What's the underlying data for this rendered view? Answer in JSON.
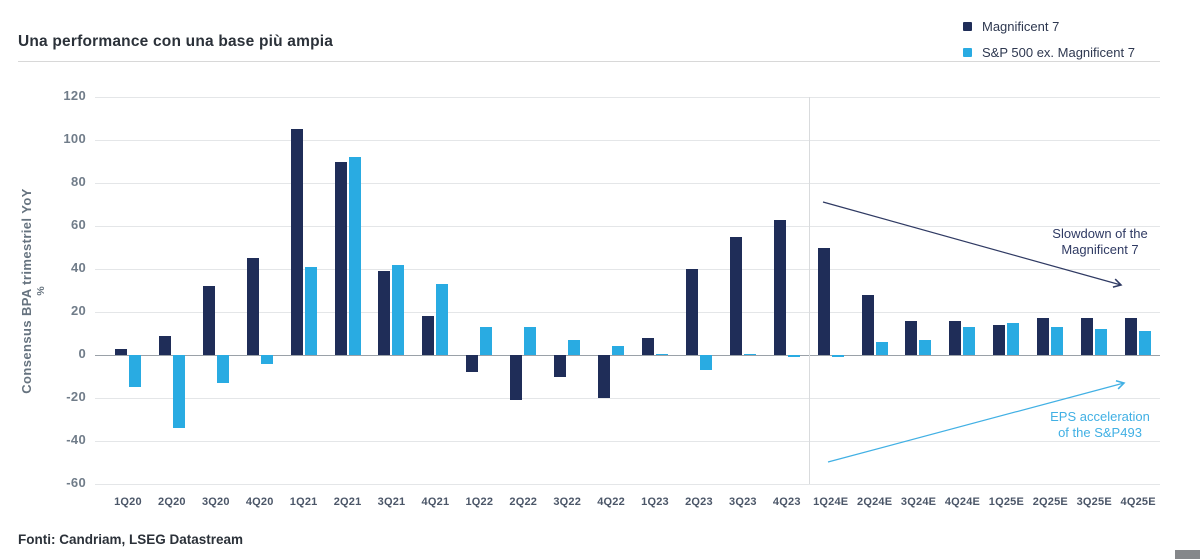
{
  "title": "Una performance con una base più ampia",
  "footer": "Fonti: Candriam, LSEG Datastream",
  "legend": {
    "items": [
      {
        "label": "Magnificent 7",
        "color": "#1f2d58"
      },
      {
        "label": "S&P 500 ex. Magnificent 7",
        "color": "#29abe2"
      }
    ]
  },
  "annotations": {
    "slowdown": {
      "line1": "Slowdown of the",
      "line2": "Magnificent 7",
      "color": "#2f3a63"
    },
    "eps": {
      "line1": "EPS acceleration",
      "line2": "of the S&P493",
      "color": "#41b0e4"
    }
  },
  "chart_data": {
    "type": "bar",
    "title": "Una performance con una base più ampia",
    "ylabel": "Consensus BPA trimestriel YoY",
    "ylabel_unit": "%",
    "ylim": [
      -60,
      120
    ],
    "ytick_step": 20,
    "grid": true,
    "legend_position": "top-right",
    "categories": [
      "1Q20",
      "2Q20",
      "3Q20",
      "4Q20",
      "1Q21",
      "2Q21",
      "3Q21",
      "4Q21",
      "1Q22",
      "2Q22",
      "3Q22",
      "4Q22",
      "1Q23",
      "2Q23",
      "3Q23",
      "4Q23",
      "1Q24E",
      "2Q24E",
      "3Q24E",
      "4Q24E",
      "1Q25E",
      "2Q25E",
      "3Q25E",
      "4Q25E"
    ],
    "series": [
      {
        "name": "Magnificent 7",
        "color": "#1f2d58",
        "values": [
          3,
          9,
          32,
          45,
          105,
          90,
          39,
          18,
          -8,
          -21,
          -10,
          -20,
          8,
          40,
          55,
          63,
          50,
          28,
          16,
          16,
          14,
          17,
          17,
          17
        ]
      },
      {
        "name": "S&P 500 ex. Magnificent 7",
        "color": "#29abe2",
        "values": [
          -15,
          -34,
          -13,
          -4,
          41,
          92,
          42,
          33,
          13,
          13,
          7,
          4,
          0.5,
          -7,
          0.5,
          -1,
          -1,
          6,
          7,
          13,
          15,
          13,
          12,
          11
        ]
      }
    ],
    "estimate_divider_after": "4Q23"
  }
}
